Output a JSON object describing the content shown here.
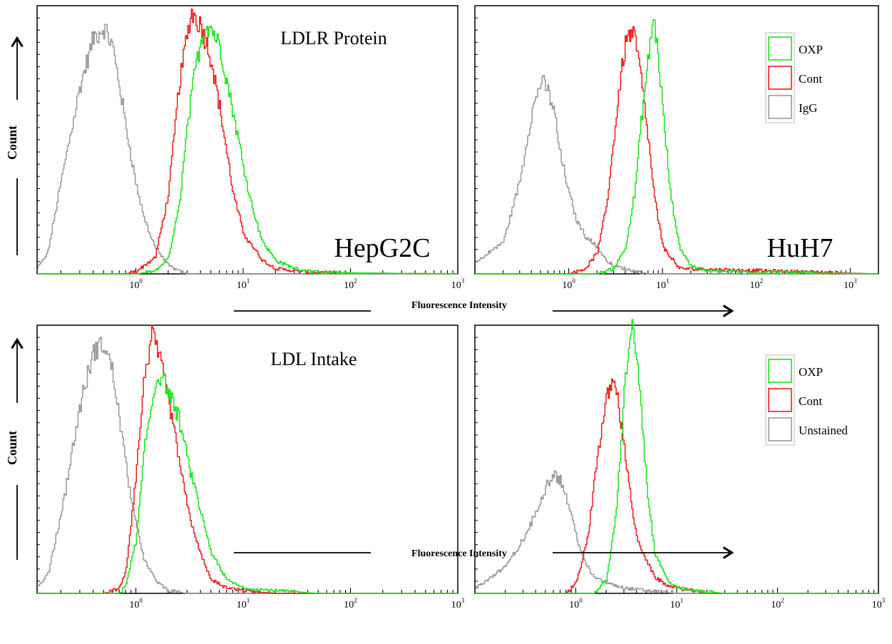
{
  "figure": {
    "x_axis_title": "Fluorescence Intensity",
    "y_axis_title": "Count"
  },
  "colors": {
    "OXP": "#19e619",
    "Cont": "#ee1c1c",
    "gray": "#9a9a9a",
    "axis": "#000000"
  },
  "chart_data": [
    {
      "type": "line",
      "panel": "top-left",
      "annotation": "LDLR Protein",
      "cell_line": "HepG2C",
      "x_scale": "log",
      "xlim": [
        0.12,
        1000
      ],
      "x_ticks": [
        {
          "base": "10",
          "exp": "0"
        },
        {
          "base": "10",
          "exp": "1"
        },
        {
          "base": "10",
          "exp": "2"
        },
        {
          "base": "10",
          "exp": "3"
        }
      ],
      "ylim": [
        0,
        1
      ],
      "legend": null,
      "series": [
        {
          "key": "gray",
          "x": [
            0.12,
            0.15,
            0.2,
            0.3,
            0.4,
            0.5,
            0.6,
            0.7,
            0.8,
            1.0,
            1.2,
            1.5,
            2.0,
            2.5,
            3.0,
            5.0,
            1000
          ],
          "y": [
            0.02,
            0.08,
            0.35,
            0.7,
            0.88,
            0.92,
            0.85,
            0.7,
            0.55,
            0.33,
            0.2,
            0.1,
            0.03,
            0.01,
            0.0,
            0.0,
            0.0
          ]
        },
        {
          "key": "Cont",
          "x": [
            0.12,
            0.8,
            1.0,
            1.5,
            2.0,
            2.5,
            3.0,
            3.3,
            3.6,
            4.0,
            5.0,
            6.0,
            7.0,
            8.0,
            10.0,
            15.0,
            20.0,
            40.0,
            1000
          ],
          "y": [
            0.0,
            0.0,
            0.01,
            0.06,
            0.3,
            0.7,
            0.9,
            0.98,
            0.95,
            0.93,
            0.8,
            0.62,
            0.45,
            0.3,
            0.15,
            0.05,
            0.02,
            0.005,
            0.0
          ]
        },
        {
          "key": "OXP",
          "x": [
            0.12,
            1.0,
            1.5,
            2.0,
            2.5,
            3.0,
            3.5,
            4.0,
            4.5,
            5.0,
            6.0,
            7.0,
            8.0,
            10.0,
            12.0,
            15.0,
            20.0,
            30.0,
            50.0,
            1000
          ],
          "y": [
            0.0,
            0.0,
            0.01,
            0.06,
            0.25,
            0.55,
            0.75,
            0.87,
            0.93,
            0.92,
            0.85,
            0.72,
            0.6,
            0.4,
            0.25,
            0.12,
            0.05,
            0.02,
            0.005,
            0.0
          ]
        }
      ]
    },
    {
      "type": "line",
      "panel": "top-right",
      "annotation": "",
      "cell_line": "HuH7",
      "x_scale": "log",
      "xlim": [
        0.1,
        2000
      ],
      "x_ticks": [
        {
          "base": "10",
          "exp": "0"
        },
        {
          "base": "10",
          "exp": "1"
        },
        {
          "base": "10",
          "exp": "2"
        },
        {
          "base": "10",
          "exp": "3"
        }
      ],
      "ylim": [
        0,
        1
      ],
      "legend": [
        {
          "key": "OXP",
          "label": "OXP"
        },
        {
          "key": "Cont",
          "label": "Cont"
        },
        {
          "key": "gray",
          "label": "IgG"
        }
      ],
      "series": [
        {
          "key": "gray",
          "x": [
            0.1,
            0.2,
            0.3,
            0.4,
            0.5,
            0.6,
            0.7,
            0.8,
            1.0,
            1.2,
            1.5,
            2.0,
            2.5,
            3.0,
            5.0,
            7.0,
            2000
          ],
          "y": [
            0.04,
            0.12,
            0.35,
            0.6,
            0.72,
            0.68,
            0.6,
            0.45,
            0.3,
            0.2,
            0.14,
            0.1,
            0.05,
            0.03,
            0.01,
            0.0,
            0.0
          ]
        },
        {
          "key": "Cont",
          "x": [
            0.1,
            1.0,
            1.5,
            2.0,
            2.5,
            3.0,
            3.5,
            4.0,
            4.5,
            5.0,
            5.5,
            6.0,
            7.0,
            8.0,
            10.0,
            15.0,
            2000
          ],
          "y": [
            0.0,
            0.0,
            0.02,
            0.08,
            0.25,
            0.5,
            0.72,
            0.86,
            0.9,
            0.88,
            0.8,
            0.7,
            0.5,
            0.3,
            0.1,
            0.02,
            0.0
          ]
        },
        {
          "key": "OXP",
          "x": [
            0.1,
            2.0,
            3.0,
            4.0,
            5.0,
            6.0,
            7.0,
            7.5,
            8.0,
            9.0,
            10.0,
            11.0,
            12.0,
            15.0,
            20.0,
            30.0,
            2000
          ],
          "y": [
            0.0,
            0.0,
            0.02,
            0.1,
            0.3,
            0.6,
            0.8,
            0.9,
            0.95,
            0.8,
            0.6,
            0.45,
            0.3,
            0.1,
            0.03,
            0.01,
            0.0
          ]
        }
      ]
    },
    {
      "type": "line",
      "panel": "bottom-left",
      "annotation": "LDL Intake",
      "cell_line": "",
      "x_scale": "log",
      "xlim": [
        0.12,
        1000
      ],
      "x_ticks": [
        {
          "base": "10",
          "exp": "0"
        },
        {
          "base": "10",
          "exp": "1"
        },
        {
          "base": "10",
          "exp": "2"
        },
        {
          "base": "10",
          "exp": "3"
        }
      ],
      "ylim": [
        0,
        1
      ],
      "legend": null,
      "series": [
        {
          "key": "gray",
          "x": [
            0.12,
            0.15,
            0.2,
            0.3,
            0.4,
            0.5,
            0.6,
            0.7,
            0.8,
            1.0,
            1.2,
            1.5,
            2.0,
            3.0,
            1000
          ],
          "y": [
            0.02,
            0.07,
            0.3,
            0.7,
            0.9,
            0.93,
            0.83,
            0.65,
            0.48,
            0.25,
            0.12,
            0.05,
            0.01,
            0.0,
            0.0
          ]
        },
        {
          "key": "Cont",
          "x": [
            0.12,
            0.5,
            0.7,
            0.8,
            1.0,
            1.2,
            1.4,
            1.6,
            1.8,
            2.0,
            2.5,
            3.0,
            4.0,
            5.0,
            7.0,
            10.0,
            20.0,
            1000
          ],
          "y": [
            0.0,
            0.0,
            0.02,
            0.08,
            0.45,
            0.82,
            0.96,
            0.9,
            0.8,
            0.72,
            0.5,
            0.32,
            0.14,
            0.05,
            0.02,
            0.01,
            0.0,
            0.0
          ]
        },
        {
          "key": "OXP",
          "x": [
            0.12,
            0.7,
            0.8,
            1.0,
            1.2,
            1.5,
            1.7,
            2.0,
            2.5,
            3.0,
            4.0,
            5.0,
            7.0,
            10.0,
            20.0,
            50.0,
            1000
          ],
          "y": [
            0.0,
            0.0,
            0.03,
            0.2,
            0.55,
            0.78,
            0.82,
            0.75,
            0.65,
            0.5,
            0.3,
            0.15,
            0.05,
            0.02,
            0.01,
            0.0,
            0.0
          ]
        }
      ]
    },
    {
      "type": "line",
      "panel": "bottom-right",
      "annotation": "",
      "cell_line": "",
      "x_scale": "log",
      "xlim": [
        0.1,
        1000
      ],
      "x_ticks": [
        {
          "base": "10",
          "exp": "0"
        },
        {
          "base": "10",
          "exp": "1"
        },
        {
          "base": "10",
          "exp": "2"
        },
        {
          "base": "10",
          "exp": "3"
        }
      ],
      "ylim": [
        0,
        1
      ],
      "legend": [
        {
          "key": "OXP",
          "label": "OXP"
        },
        {
          "key": "Cont",
          "label": "Cont"
        },
        {
          "key": "gray",
          "label": "Unstained"
        }
      ],
      "series": [
        {
          "key": "gray",
          "x": [
            0.1,
            0.2,
            0.3,
            0.4,
            0.5,
            0.6,
            0.7,
            0.8,
            1.0,
            1.2,
            1.5,
            2.0,
            3.0,
            5.0,
            10.0,
            1000
          ],
          "y": [
            0.02,
            0.1,
            0.2,
            0.3,
            0.4,
            0.45,
            0.42,
            0.36,
            0.22,
            0.12,
            0.06,
            0.04,
            0.02,
            0.01,
            0.0,
            0.0
          ]
        },
        {
          "key": "Cont",
          "x": [
            0.1,
            0.8,
            1.0,
            1.3,
            1.6,
            2.0,
            2.3,
            2.6,
            3.0,
            3.5,
            4.0,
            5.0,
            6.0,
            8.0,
            10.0,
            20.0,
            1000
          ],
          "y": [
            0.0,
            0.0,
            0.04,
            0.2,
            0.5,
            0.72,
            0.8,
            0.72,
            0.55,
            0.35,
            0.2,
            0.12,
            0.06,
            0.03,
            0.02,
            0.0,
            0.0
          ]
        },
        {
          "key": "OXP",
          "x": [
            0.1,
            1.5,
            2.0,
            2.5,
            3.0,
            3.3,
            3.6,
            4.0,
            4.5,
            5.0,
            6.0,
            8.0,
            10.0,
            15.0,
            30.0,
            1000
          ],
          "y": [
            0.0,
            0.0,
            0.05,
            0.3,
            0.75,
            0.92,
            0.98,
            0.88,
            0.65,
            0.4,
            0.15,
            0.05,
            0.02,
            0.01,
            0.0,
            0.0
          ]
        }
      ]
    }
  ]
}
